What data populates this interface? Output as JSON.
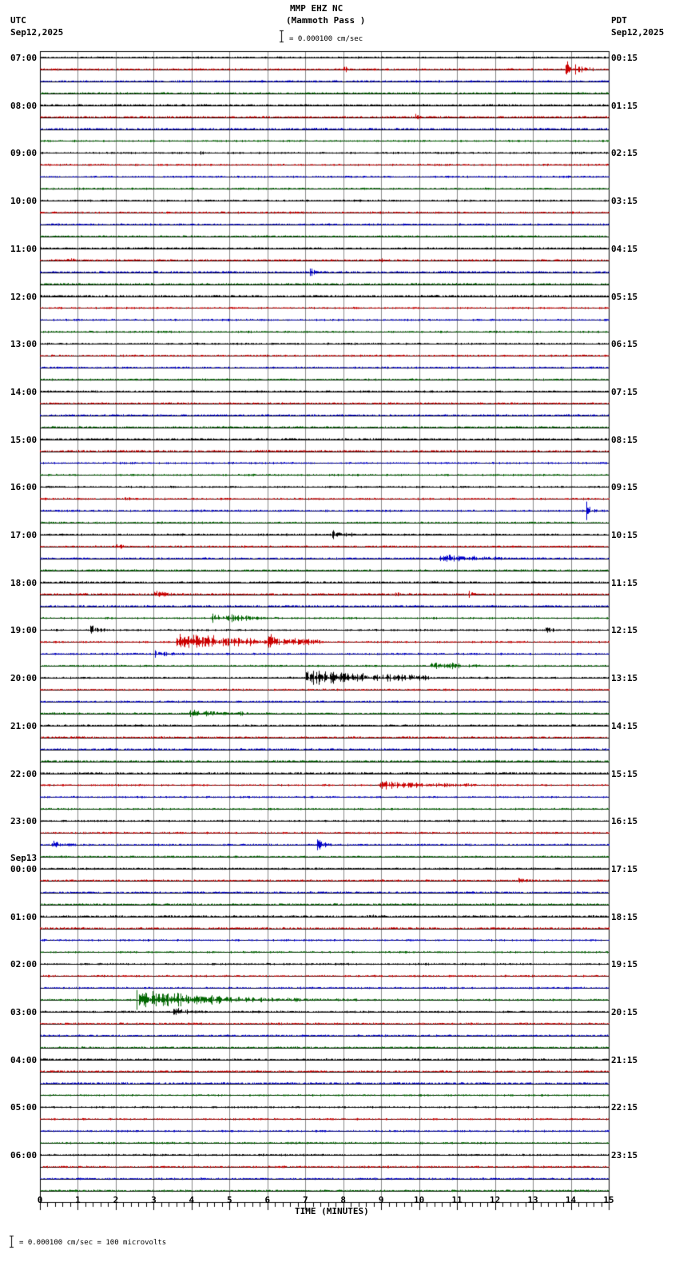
{
  "header": {
    "station": "MMP EHZ NC",
    "location": "(Mammoth Pass )",
    "scale": "= 0.000100 cm/sec",
    "left_tz": "UTC",
    "left_date": "Sep12,2025",
    "right_tz": "PDT",
    "right_date": "Sep12,2025"
  },
  "footer": {
    "scale_text": "= 0.000100 cm/sec =     100 microvolts",
    "xlabel": "TIME (MINUTES)"
  },
  "chart_data": {
    "type": "line",
    "title": "MMP EHZ NC (Mammoth Pass )",
    "xlabel": "TIME (MINUTES)",
    "ylabel": "",
    "xlim": [
      0,
      15
    ],
    "x_ticks": [
      0,
      1,
      2,
      3,
      4,
      5,
      6,
      7,
      8,
      9,
      10,
      11,
      12,
      13,
      14,
      15
    ],
    "grid": true,
    "trace_colors": [
      "#000000",
      "#cc0000",
      "#0000cc",
      "#006600"
    ],
    "traces_per_hour": 4,
    "utc_labels": [
      "07:00",
      "08:00",
      "09:00",
      "10:00",
      "11:00",
      "12:00",
      "13:00",
      "14:00",
      "15:00",
      "16:00",
      "17:00",
      "18:00",
      "19:00",
      "20:00",
      "21:00",
      "22:00",
      "23:00",
      "00:00",
      "01:00",
      "02:00",
      "03:00",
      "04:00",
      "05:00",
      "06:00"
    ],
    "date_change_label": {
      "hour_index": 17,
      "text": "Sep13"
    },
    "pdt_labels": [
      "00:15",
      "01:15",
      "02:15",
      "03:15",
      "04:15",
      "05:15",
      "06:15",
      "07:15",
      "08:15",
      "09:15",
      "10:15",
      "11:15",
      "12:15",
      "13:15",
      "14:15",
      "15:15",
      "16:15",
      "17:15",
      "18:15",
      "19:15",
      "20:15",
      "21:15",
      "22:15",
      "23:15"
    ],
    "events": [
      {
        "trace": 1,
        "start": 13.85,
        "dur": 1.0,
        "amp": 14,
        "decay": 0.25
      },
      {
        "trace": 1,
        "start": 8.0,
        "dur": 0.3,
        "amp": 5,
        "decay": 0.3
      },
      {
        "trace": 5,
        "start": 9.9,
        "dur": 0.3,
        "amp": 4,
        "decay": 0.3
      },
      {
        "trace": 8,
        "start": 4.2,
        "dur": 0.2,
        "amp": 5,
        "decay": 0.3
      },
      {
        "trace": 17,
        "start": 0.7,
        "dur": 0.4,
        "amp": 4,
        "decay": 0.4
      },
      {
        "trace": 18,
        "start": 7.1,
        "dur": 0.3,
        "amp": 12,
        "decay": 0.2
      },
      {
        "trace": 17,
        "start": 9.0,
        "dur": 0.1,
        "amp": 8,
        "decay": 0.1
      },
      {
        "trace": 37,
        "start": 2.2,
        "dur": 0.3,
        "amp": 3,
        "decay": 0.4
      },
      {
        "trace": 38,
        "start": 14.4,
        "dur": 0.5,
        "amp": 14,
        "decay": 0.2
      },
      {
        "trace": 40,
        "start": 7.7,
        "dur": 0.6,
        "amp": 5,
        "decay": 0.5
      },
      {
        "trace": 41,
        "start": 2.0,
        "dur": 0.5,
        "amp": 3,
        "decay": 0.5
      },
      {
        "trace": 42,
        "start": 10.5,
        "dur": 1.8,
        "amp": 5,
        "decay": 0.6
      },
      {
        "trace": 45,
        "start": 3.0,
        "dur": 0.5,
        "amp": 12,
        "decay": 0.3
      },
      {
        "trace": 45,
        "start": 9.3,
        "dur": 0.3,
        "amp": 4,
        "decay": 0.4
      },
      {
        "trace": 45,
        "start": 11.3,
        "dur": 0.3,
        "amp": 4,
        "decay": 0.4
      },
      {
        "trace": 47,
        "start": 4.5,
        "dur": 1.5,
        "amp": 6,
        "decay": 0.6
      },
      {
        "trace": 48,
        "start": 1.3,
        "dur": 0.5,
        "amp": 7,
        "decay": 0.4
      },
      {
        "trace": 48,
        "start": 13.3,
        "dur": 0.4,
        "amp": 5,
        "decay": 0.4
      },
      {
        "trace": 49,
        "start": 3.6,
        "dur": 3.8,
        "amp": 9,
        "decay": 0.8
      },
      {
        "trace": 49,
        "start": 6.0,
        "dur": 0.4,
        "amp": 15,
        "decay": 0.3
      },
      {
        "trace": 50,
        "start": 3.0,
        "dur": 0.6,
        "amp": 4,
        "decay": 0.5
      },
      {
        "trace": 51,
        "start": 10.3,
        "dur": 1.3,
        "amp": 5,
        "decay": 0.6
      },
      {
        "trace": 52,
        "start": 7.0,
        "dur": 3.3,
        "amp": 9,
        "decay": 0.7
      },
      {
        "trace": 55,
        "start": 3.9,
        "dur": 1.6,
        "amp": 6,
        "decay": 0.6
      },
      {
        "trace": 61,
        "start": 8.9,
        "dur": 2.6,
        "amp": 5,
        "decay": 0.7
      },
      {
        "trace": 66,
        "start": 0.3,
        "dur": 0.6,
        "amp": 5,
        "decay": 0.5
      },
      {
        "trace": 66,
        "start": 7.3,
        "dur": 0.6,
        "amp": 9,
        "decay": 0.3
      },
      {
        "trace": 69,
        "start": 12.6,
        "dur": 0.6,
        "amp": 3,
        "decay": 0.5
      },
      {
        "trace": 72,
        "start": 8.6,
        "dur": 0.5,
        "amp": 6,
        "decay": 0.3
      },
      {
        "trace": 79,
        "start": 2.5,
        "dur": 6.0,
        "amp": 14,
        "decay": 0.3
      },
      {
        "trace": 80,
        "start": 3.5,
        "dur": 0.8,
        "amp": 6,
        "decay": 0.4
      }
    ]
  }
}
